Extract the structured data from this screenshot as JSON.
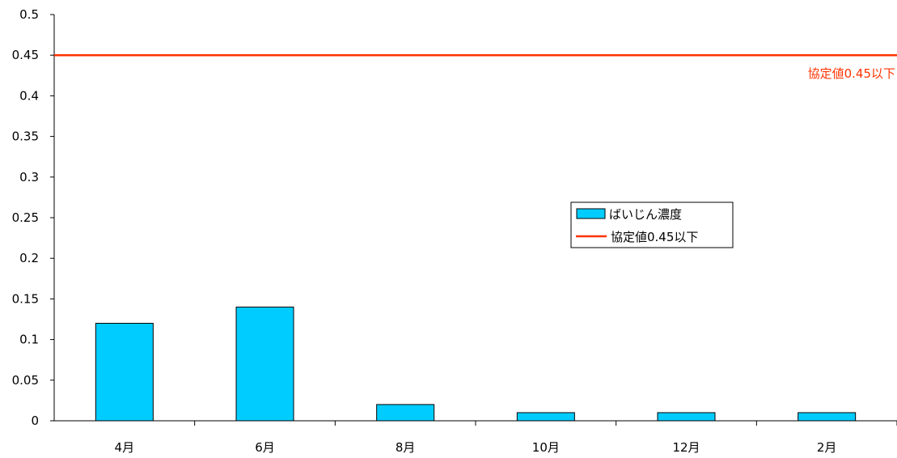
{
  "chart_data": {
    "type": "bar",
    "categories": [
      "4月",
      "6月",
      "8月",
      "10月",
      "12月",
      "2月"
    ],
    "series": [
      {
        "name": "ばいじん濃度",
        "values": [
          0.12,
          0.14,
          0.02,
          0.01,
          0.01,
          0.01
        ],
        "color": "#00CCFF"
      }
    ],
    "reference_line": {
      "name": "協定値0.45以下",
      "value": 0.45,
      "color": "#FF3300",
      "label": "協定値0.45以下"
    },
    "y_ticks": [
      "0",
      "0.05",
      "0.1",
      "0.15",
      "0.2",
      "0.25",
      "0.3",
      "0.35",
      "0.4",
      "0.45",
      "0.5"
    ],
    "ylim": [
      0,
      0.5
    ],
    "grid": false,
    "legend_position": "center-right",
    "title": "",
    "xlabel": "",
    "ylabel": ""
  }
}
